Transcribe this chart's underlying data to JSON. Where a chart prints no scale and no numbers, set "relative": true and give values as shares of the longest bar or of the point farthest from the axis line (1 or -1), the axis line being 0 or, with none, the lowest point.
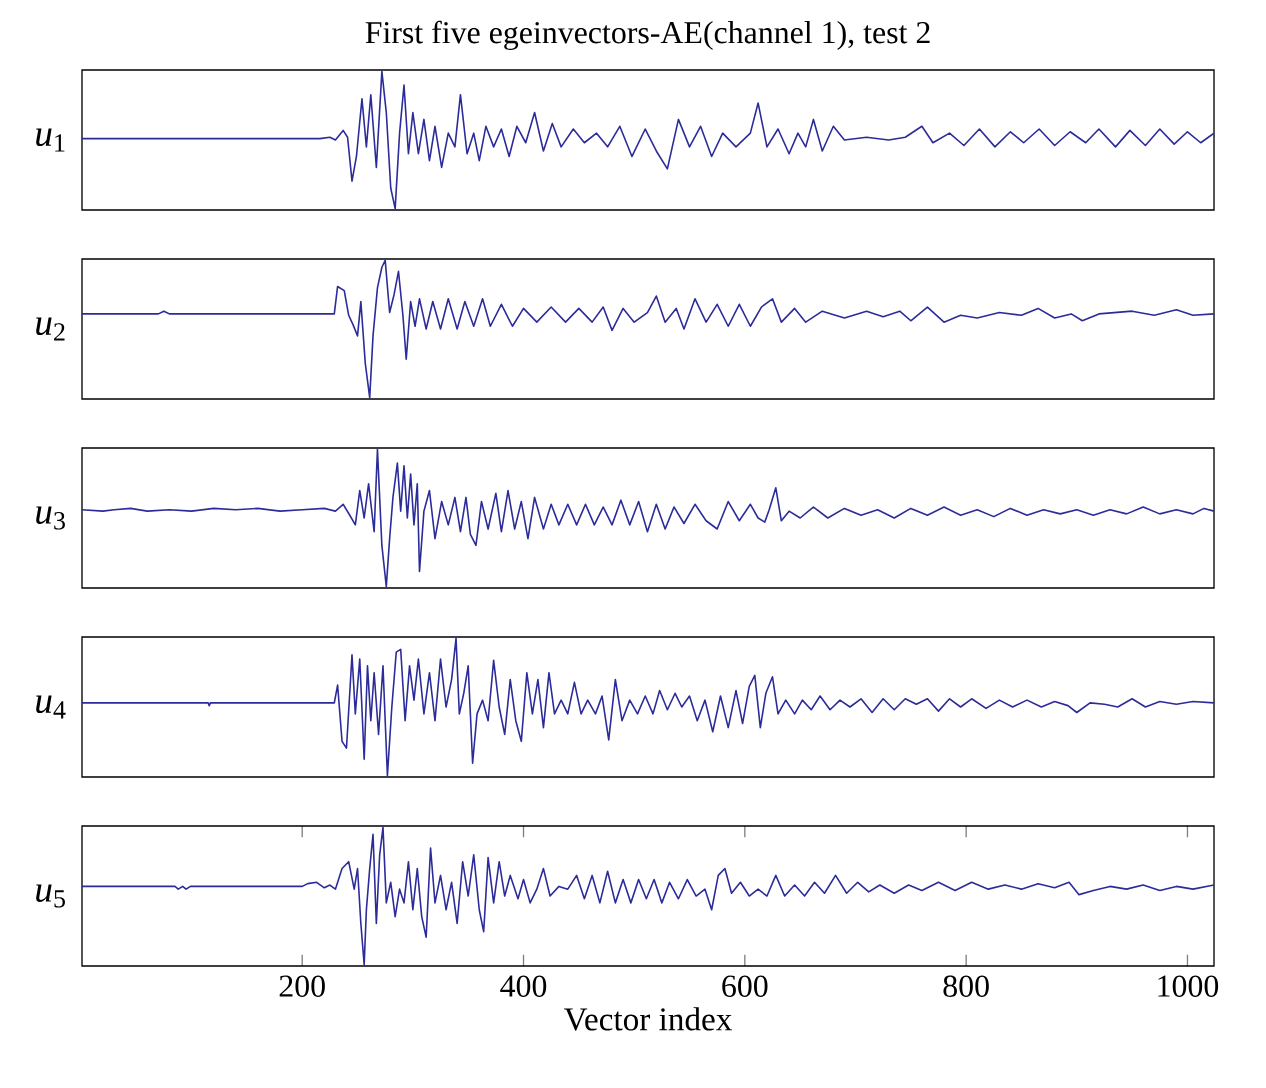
{
  "chart_data": [
    {
      "type": "line",
      "title": "First five egeinvectors-AE(channel 1), test 2",
      "ylabel": "*u*$_{1}$",
      "relative": true,
      "xlim": [
        1,
        1024
      ],
      "tick_labels": false,
      "color": "#2b2b9a",
      "x": [
        1,
        216,
        225,
        230,
        237,
        241,
        245,
        249,
        254,
        258,
        262,
        267,
        272,
        276,
        280,
        284,
        288,
        292,
        296,
        300,
        305,
        310,
        315,
        320,
        326,
        332,
        338,
        343,
        349,
        355,
        360,
        366,
        373,
        380,
        387,
        394,
        402,
        410,
        418,
        426,
        434,
        445,
        455,
        466,
        476,
        487,
        498,
        510,
        520,
        530,
        540,
        550,
        560,
        570,
        580,
        592,
        605,
        612,
        620,
        630,
        640,
        648,
        655,
        662,
        670,
        680,
        690,
        710,
        730,
        745,
        760,
        770,
        785,
        798,
        812,
        826,
        840,
        852,
        866,
        880,
        894,
        908,
        920,
        935,
        948,
        962,
        975,
        988,
        1000,
        1012,
        1024
      ],
      "values": [
        0.51,
        0.51,
        0.52,
        0.5,
        0.57,
        0.52,
        0.2,
        0.38,
        0.8,
        0.45,
        0.83,
        0.3,
        1.0,
        0.7,
        0.15,
        0.0,
        0.55,
        0.9,
        0.4,
        0.7,
        0.4,
        0.65,
        0.35,
        0.6,
        0.3,
        0.55,
        0.45,
        0.83,
        0.4,
        0.55,
        0.35,
        0.6,
        0.45,
        0.58,
        0.38,
        0.6,
        0.48,
        0.7,
        0.42,
        0.62,
        0.45,
        0.58,
        0.48,
        0.55,
        0.45,
        0.6,
        0.38,
        0.58,
        0.42,
        0.29,
        0.65,
        0.45,
        0.6,
        0.38,
        0.55,
        0.45,
        0.55,
        0.77,
        0.45,
        0.58,
        0.4,
        0.55,
        0.45,
        0.65,
        0.42,
        0.6,
        0.5,
        0.52,
        0.5,
        0.52,
        0.6,
        0.48,
        0.55,
        0.46,
        0.58,
        0.45,
        0.56,
        0.48,
        0.58,
        0.46,
        0.56,
        0.48,
        0.58,
        0.45,
        0.57,
        0.46,
        0.58,
        0.47,
        0.56,
        0.48,
        0.55
      ]
    },
    {
      "type": "line",
      "ylabel": "*u*$_{2}$",
      "relative": true,
      "xlim": [
        1,
        1024
      ],
      "tick_labels": false,
      "color": "#2b2b9a",
      "x": [
        1,
        70,
        75,
        80,
        229,
        232,
        238,
        242,
        246,
        250,
        253,
        257,
        261,
        264,
        268,
        272,
        275,
        279,
        283,
        287,
        291,
        294,
        298,
        302,
        306,
        312,
        318,
        325,
        332,
        340,
        347,
        355,
        363,
        370,
        380,
        390,
        400,
        412,
        425,
        438,
        450,
        462,
        472,
        480,
        490,
        500,
        512,
        520,
        528,
        538,
        545,
        555,
        565,
        575,
        585,
        595,
        605,
        615,
        625,
        633,
        645,
        655,
        670,
        690,
        710,
        725,
        740,
        750,
        765,
        780,
        795,
        810,
        830,
        850,
        865,
        880,
        895,
        905,
        920,
        950,
        970,
        990,
        1005,
        1024
      ],
      "values": [
        0.61,
        0.61,
        0.63,
        0.61,
        0.61,
        0.81,
        0.78,
        0.6,
        0.53,
        0.45,
        0.7,
        0.25,
        0.0,
        0.45,
        0.8,
        0.95,
        1.0,
        0.62,
        0.75,
        0.92,
        0.6,
        0.28,
        0.7,
        0.52,
        0.72,
        0.5,
        0.7,
        0.5,
        0.72,
        0.5,
        0.7,
        0.52,
        0.72,
        0.52,
        0.68,
        0.52,
        0.65,
        0.55,
        0.66,
        0.55,
        0.65,
        0.55,
        0.66,
        0.49,
        0.65,
        0.55,
        0.62,
        0.74,
        0.55,
        0.65,
        0.5,
        0.72,
        0.55,
        0.68,
        0.52,
        0.68,
        0.52,
        0.66,
        0.72,
        0.55,
        0.65,
        0.55,
        0.63,
        0.58,
        0.63,
        0.59,
        0.63,
        0.56,
        0.66,
        0.55,
        0.6,
        0.58,
        0.62,
        0.6,
        0.65,
        0.58,
        0.61,
        0.56,
        0.61,
        0.63,
        0.6,
        0.64,
        0.6,
        0.61
      ]
    },
    {
      "type": "line",
      "ylabel": "*u*$_{3}$",
      "relative": true,
      "xlim": [
        1,
        1024
      ],
      "tick_labels": false,
      "color": "#2b2b9a",
      "x": [
        1,
        20,
        30,
        45,
        60,
        80,
        100,
        120,
        140,
        160,
        180,
        200,
        220,
        230,
        237,
        243,
        248,
        252,
        256,
        260,
        265,
        268,
        272,
        276,
        279,
        282,
        286,
        289,
        292,
        295,
        298,
        301,
        304,
        306,
        310,
        315,
        320,
        326,
        332,
        338,
        343,
        348,
        352,
        357,
        362,
        368,
        375,
        380,
        386,
        392,
        398,
        404,
        410,
        418,
        425,
        432,
        440,
        448,
        456,
        464,
        472,
        480,
        488,
        496,
        504,
        512,
        520,
        528,
        536,
        545,
        555,
        565,
        575,
        585,
        595,
        605,
        612,
        618,
        622,
        628,
        633,
        640,
        650,
        662,
        675,
        690,
        705,
        720,
        735,
        750,
        765,
        780,
        795,
        810,
        825,
        840,
        855,
        870,
        885,
        900,
        915,
        930,
        945,
        960,
        975,
        990,
        1005,
        1015,
        1024
      ],
      "values": [
        0.56,
        0.55,
        0.56,
        0.57,
        0.55,
        0.56,
        0.55,
        0.57,
        0.56,
        0.57,
        0.55,
        0.56,
        0.57,
        0.55,
        0.6,
        0.52,
        0.45,
        0.7,
        0.5,
        0.75,
        0.4,
        1.0,
        0.3,
        0.0,
        0.35,
        0.65,
        0.9,
        0.55,
        0.88,
        0.5,
        0.82,
        0.45,
        0.75,
        0.11,
        0.55,
        0.7,
        0.35,
        0.62,
        0.45,
        0.65,
        0.4,
        0.65,
        0.38,
        0.3,
        0.62,
        0.42,
        0.68,
        0.4,
        0.7,
        0.42,
        0.62,
        0.35,
        0.65,
        0.42,
        0.6,
        0.45,
        0.6,
        0.45,
        0.6,
        0.45,
        0.58,
        0.45,
        0.63,
        0.45,
        0.62,
        0.4,
        0.6,
        0.42,
        0.58,
        0.46,
        0.6,
        0.48,
        0.42,
        0.62,
        0.48,
        0.6,
        0.5,
        0.47,
        0.56,
        0.72,
        0.48,
        0.55,
        0.5,
        0.58,
        0.5,
        0.57,
        0.52,
        0.56,
        0.5,
        0.57,
        0.52,
        0.58,
        0.52,
        0.56,
        0.51,
        0.57,
        0.52,
        0.56,
        0.53,
        0.56,
        0.52,
        0.56,
        0.53,
        0.58,
        0.53,
        0.56,
        0.53,
        0.57,
        0.55
      ]
    },
    {
      "type": "line",
      "ylabel": "*u*$_{4}$",
      "relative": true,
      "xlim": [
        1,
        1024
      ],
      "tick_labels": false,
      "color": "#2b2b9a",
      "x": [
        1,
        115,
        116,
        117,
        229,
        232,
        236,
        240,
        245,
        248,
        252,
        256,
        259,
        262,
        265,
        269,
        273,
        277,
        281,
        285,
        289,
        293,
        297,
        301,
        305,
        310,
        315,
        320,
        325,
        330,
        335,
        339,
        342,
        346,
        350,
        354,
        358,
        363,
        368,
        373,
        378,
        383,
        388,
        393,
        398,
        403,
        408,
        413,
        418,
        423,
        428,
        434,
        440,
        446,
        452,
        458,
        465,
        471,
        477,
        483,
        489,
        496,
        503,
        510,
        517,
        523,
        530,
        537,
        543,
        550,
        557,
        564,
        571,
        578,
        585,
        592,
        598,
        604,
        609,
        614,
        619,
        625,
        630,
        637,
        645,
        652,
        660,
        668,
        677,
        686,
        695,
        705,
        715,
        725,
        735,
        745,
        755,
        765,
        775,
        785,
        795,
        805,
        818,
        830,
        842,
        855,
        868,
        880,
        892,
        900,
        912,
        925,
        937,
        950,
        962,
        975,
        990,
        1005,
        1024
      ],
      "values": [
        0.53,
        0.53,
        0.51,
        0.53,
        0.53,
        0.66,
        0.25,
        0.2,
        0.88,
        0.45,
        0.85,
        0.12,
        0.8,
        0.4,
        0.75,
        0.3,
        0.8,
        0.0,
        0.5,
        0.9,
        0.92,
        0.4,
        0.8,
        0.55,
        0.85,
        0.45,
        0.75,
        0.4,
        0.85,
        0.5,
        0.7,
        1.0,
        0.45,
        0.6,
        0.8,
        0.09,
        0.45,
        0.55,
        0.4,
        0.84,
        0.5,
        0.3,
        0.7,
        0.4,
        0.25,
        0.75,
        0.45,
        0.7,
        0.35,
        0.75,
        0.45,
        0.55,
        0.45,
        0.68,
        0.45,
        0.55,
        0.45,
        0.58,
        0.26,
        0.7,
        0.4,
        0.55,
        0.45,
        0.58,
        0.45,
        0.62,
        0.48,
        0.6,
        0.5,
        0.58,
        0.4,
        0.55,
        0.32,
        0.58,
        0.35,
        0.62,
        0.38,
        0.65,
        0.73,
        0.35,
        0.6,
        0.72,
        0.45,
        0.55,
        0.45,
        0.55,
        0.48,
        0.58,
        0.48,
        0.55,
        0.5,
        0.56,
        0.46,
        0.56,
        0.48,
        0.56,
        0.52,
        0.56,
        0.47,
        0.56,
        0.5,
        0.56,
        0.49,
        0.55,
        0.5,
        0.55,
        0.5,
        0.54,
        0.51,
        0.46,
        0.53,
        0.52,
        0.5,
        0.56,
        0.5,
        0.54,
        0.52,
        0.54,
        0.53
      ]
    },
    {
      "type": "line",
      "ylabel": "*u*$_{5}$",
      "xlabel": "Vector index",
      "relative": true,
      "xlim": [
        1,
        1024
      ],
      "xticks": [
        200,
        400,
        600,
        800,
        1000
      ],
      "tick_labels": "x",
      "color": "#2b2b9a",
      "x": [
        1,
        85,
        88,
        92,
        95,
        99,
        200,
        205,
        213,
        220,
        225,
        230,
        236,
        242,
        247,
        250,
        253,
        256,
        258,
        261,
        264,
        267,
        270,
        273,
        276,
        280,
        284,
        288,
        292,
        296,
        300,
        304,
        308,
        312,
        316,
        320,
        325,
        330,
        335,
        340,
        345,
        350,
        355,
        360,
        364,
        368,
        373,
        378,
        383,
        388,
        395,
        400,
        406,
        412,
        418,
        424,
        432,
        440,
        448,
        455,
        462,
        469,
        476,
        483,
        490,
        497,
        504,
        511,
        518,
        525,
        532,
        540,
        548,
        556,
        564,
        570,
        576,
        582,
        588,
        596,
        604,
        612,
        620,
        628,
        636,
        645,
        654,
        663,
        672,
        682,
        692,
        702,
        712,
        722,
        735,
        748,
        760,
        775,
        790,
        805,
        820,
        835,
        850,
        865,
        880,
        893,
        902,
        915,
        930,
        945,
        960,
        975,
        990,
        1005,
        1024
      ],
      "values": [
        0.57,
        0.57,
        0.55,
        0.57,
        0.55,
        0.57,
        0.57,
        0.59,
        0.6,
        0.56,
        0.58,
        0.55,
        0.7,
        0.75,
        0.55,
        0.7,
        0.3,
        0.0,
        0.4,
        0.7,
        0.95,
        0.3,
        0.8,
        1.0,
        0.45,
        0.6,
        0.35,
        0.55,
        0.45,
        0.75,
        0.4,
        0.7,
        0.35,
        0.2,
        0.85,
        0.45,
        0.65,
        0.4,
        0.6,
        0.3,
        0.75,
        0.5,
        0.8,
        0.4,
        0.24,
        0.78,
        0.45,
        0.75,
        0.5,
        0.65,
        0.48,
        0.62,
        0.45,
        0.55,
        0.7,
        0.5,
        0.57,
        0.55,
        0.65,
        0.48,
        0.65,
        0.45,
        0.68,
        0.45,
        0.62,
        0.45,
        0.62,
        0.48,
        0.62,
        0.45,
        0.6,
        0.48,
        0.62,
        0.5,
        0.55,
        0.4,
        0.65,
        0.7,
        0.52,
        0.6,
        0.5,
        0.55,
        0.5,
        0.65,
        0.5,
        0.58,
        0.5,
        0.6,
        0.52,
        0.65,
        0.52,
        0.6,
        0.53,
        0.58,
        0.52,
        0.58,
        0.54,
        0.6,
        0.54,
        0.6,
        0.55,
        0.58,
        0.55,
        0.59,
        0.56,
        0.6,
        0.51,
        0.54,
        0.57,
        0.55,
        0.58,
        0.54,
        0.57,
        0.55,
        0.58
      ]
    }
  ]
}
